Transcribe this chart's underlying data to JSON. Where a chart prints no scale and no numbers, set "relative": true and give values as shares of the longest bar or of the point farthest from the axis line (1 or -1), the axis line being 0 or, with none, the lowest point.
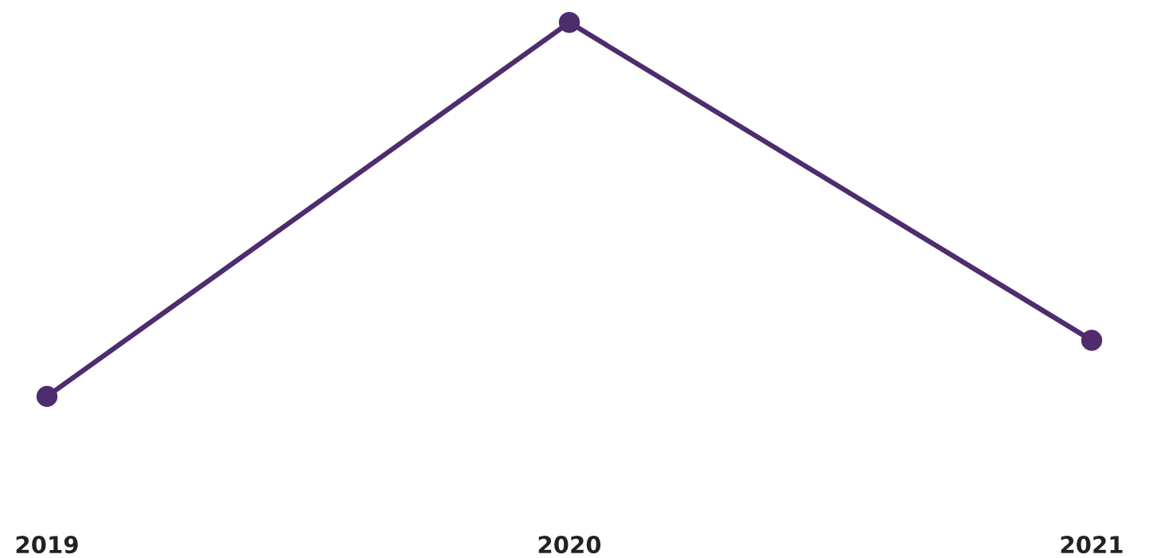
{
  "chart_data": {
    "type": "line",
    "categories": [
      "2019",
      "2020",
      "2021"
    ],
    "series": [
      {
        "color": "#4e2c6e",
        "values": [
          0,
          1,
          0.15
        ]
      }
    ],
    "relative": true,
    "marker": "circle",
    "line_style": "solid"
  }
}
